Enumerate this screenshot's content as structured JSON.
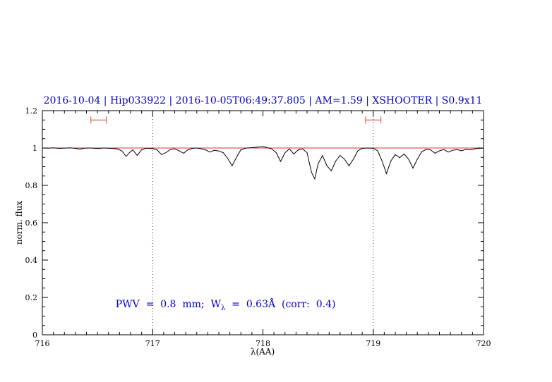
{
  "chart_data": {
    "type": "line",
    "title": "2016-10-04 | Hip033922 | 2016-10-05T06:49:37.805 | AM=1.59 | XSHOOTER | S0.9x11",
    "xlabel": "λ(AA)",
    "ylabel": "norm. flux",
    "xlim": [
      716,
      720
    ],
    "ylim": [
      0,
      1.2
    ],
    "x_ticks": [
      716,
      717,
      718,
      719,
      720
    ],
    "x_tick_labels": [
      "716",
      "717",
      "718",
      "719",
      "720"
    ],
    "y_ticks": [
      0,
      0.2,
      0.4,
      0.6,
      0.8,
      1,
      1.2
    ],
    "y_tick_labels": [
      "0",
      "0.2",
      "0.4",
      "0.6",
      "0.8",
      "1",
      "1.2"
    ],
    "x_minor_step": 0.1,
    "y_minor_step": 0.05,
    "grid": "dotted vertical lines at x ticks 717 and 719",
    "dotted_vlines": [
      717,
      719
    ],
    "continuum_line": {
      "y": 1.0,
      "color": "#dd3333"
    },
    "pwv_markers": [
      {
        "x1": 716.44,
        "x2": 716.58,
        "y": 1.15
      },
      {
        "x1": 718.93,
        "x2": 719.07,
        "y": 1.15
      }
    ],
    "marker_color": "#dd4444",
    "annotation": {
      "prefix": "PWV  =  0.8  mm;  W",
      "sub": "λ",
      "suffix": "  =  0.63Å  (corr:  0.4)",
      "x": 716.55,
      "y": 0.2,
      "color": "#0000cc"
    },
    "title_color": "#0000cc",
    "legend": "none",
    "series": [
      {
        "name": "spectrum",
        "color": "#000000",
        "x": [
          716.0,
          716.05,
          716.1,
          716.15,
          716.2,
          716.25,
          716.3,
          716.34,
          716.38,
          716.44,
          716.5,
          716.56,
          716.62,
          716.68,
          716.72,
          716.76,
          716.79,
          716.82,
          716.86,
          716.9,
          716.94,
          717.0,
          717.04,
          717.08,
          717.12,
          717.16,
          717.2,
          717.24,
          717.28,
          717.32,
          717.36,
          717.4,
          717.44,
          717.48,
          717.52,
          717.56,
          717.6,
          717.64,
          717.68,
          717.72,
          717.76,
          717.8,
          717.85,
          717.9,
          717.95,
          718.0,
          718.04,
          718.08,
          718.12,
          718.16,
          718.2,
          718.24,
          718.28,
          718.32,
          718.36,
          718.4,
          718.44,
          718.47,
          718.5,
          718.54,
          718.58,
          718.62,
          718.66,
          718.7,
          718.74,
          718.78,
          718.82,
          718.86,
          718.9,
          718.95,
          719.0,
          719.04,
          719.08,
          719.12,
          719.16,
          719.2,
          719.24,
          719.28,
          719.32,
          719.36,
          719.4,
          719.44,
          719.48,
          719.52,
          719.56,
          719.6,
          719.64,
          719.68,
          719.72,
          719.76,
          719.8,
          719.84,
          719.88,
          719.92,
          719.96,
          720.0
        ],
        "y": [
          1.0,
          0.999,
          1.001,
          0.998,
          0.999,
          1.001,
          0.998,
          0.994,
          0.999,
          1.0,
          0.997,
          1.0,
          0.998,
          0.995,
          0.985,
          0.955,
          0.975,
          0.99,
          0.96,
          0.99,
          0.999,
          0.997,
          0.99,
          0.965,
          0.975,
          0.992,
          0.996,
          0.985,
          0.972,
          0.99,
          0.998,
          1.0,
          0.996,
          0.99,
          0.978,
          0.988,
          0.984,
          0.975,
          0.945,
          0.905,
          0.95,
          0.99,
          1.0,
          1.002,
          1.004,
          1.008,
          1.002,
          0.995,
          0.975,
          0.928,
          0.975,
          0.995,
          0.968,
          0.99,
          0.995,
          0.975,
          0.87,
          0.835,
          0.915,
          0.96,
          0.905,
          0.878,
          0.93,
          0.96,
          0.94,
          0.905,
          0.94,
          0.985,
          0.998,
          1.0,
          0.998,
          0.985,
          0.93,
          0.863,
          0.93,
          0.965,
          0.948,
          0.968,
          0.94,
          0.892,
          0.94,
          0.98,
          0.993,
          0.99,
          0.972,
          0.985,
          0.992,
          0.978,
          0.988,
          0.992,
          0.985,
          0.993,
          0.99,
          0.996,
          0.998,
          0.999
        ]
      }
    ]
  }
}
